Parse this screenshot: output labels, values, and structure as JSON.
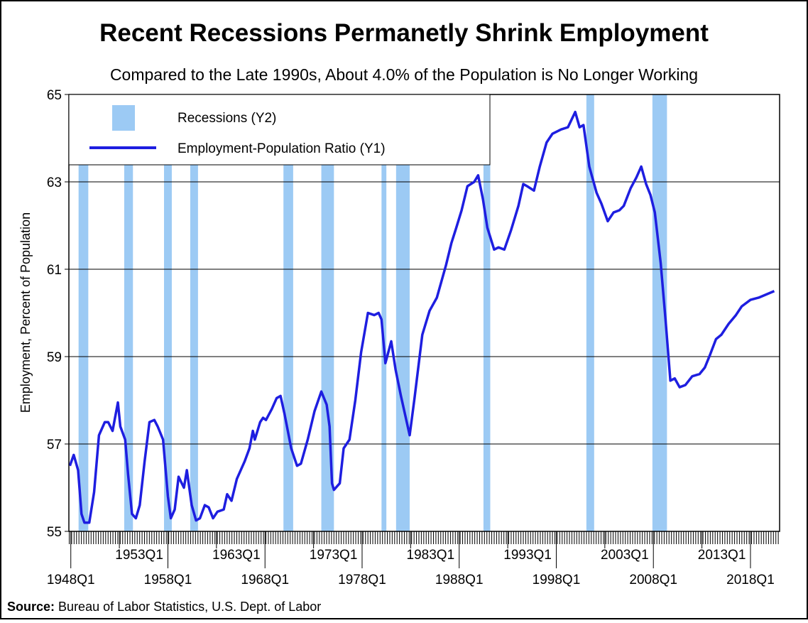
{
  "chart_data": {
    "type": "line",
    "title": "Recent Recessions Permanetly Shrink Employment",
    "subtitle": "Compared to the Late 1990s, About 4.0% of the Population is No Longer Working",
    "y_label": "Employment, Percent of Population",
    "source": {
      "label": "Source:",
      "text": "Bureau of Labor Statistics, U.S. Dept. of Labor"
    },
    "xlim": [
      1947.8,
      2021
    ],
    "ylim": [
      55,
      65
    ],
    "yticks": [
      55,
      57,
      59,
      61,
      63,
      65
    ],
    "xticks": [
      {
        "value": 1948,
        "label": "1948Q1"
      },
      {
        "value": 1953,
        "label": "1953Q1"
      },
      {
        "value": 1958,
        "label": "1958Q1"
      },
      {
        "value": 1963,
        "label": "1963Q1"
      },
      {
        "value": 1968,
        "label": "1968Q1"
      },
      {
        "value": 1973,
        "label": "1973Q1"
      },
      {
        "value": 1978,
        "label": "1978Q1"
      },
      {
        "value": 1983,
        "label": "1983Q1"
      },
      {
        "value": 1988,
        "label": "1988Q1"
      },
      {
        "value": 1993,
        "label": "1993Q1"
      },
      {
        "value": 1998,
        "label": "1998Q1"
      },
      {
        "value": 2003,
        "label": "2003Q1"
      },
      {
        "value": 2008,
        "label": "2008Q1"
      },
      {
        "value": 2013,
        "label": "2013Q1"
      },
      {
        "value": 2018,
        "label": "2018Q1"
      }
    ],
    "grid": true,
    "legend": "upper left",
    "recessions": {
      "name": "Recessions (Y2)",
      "color": "#9ccaf4",
      "start": [
        1948.8,
        1953.5,
        1957.6,
        1960.3,
        1969.9,
        1973.8,
        1980.0,
        1981.5,
        1990.5,
        2001.1,
        2007.9
      ],
      "end": [
        1949.8,
        1954.4,
        1958.4,
        1961.1,
        1970.9,
        1975.1,
        1980.5,
        1982.9,
        1991.2,
        2001.9,
        2009.4
      ]
    },
    "x": [
      1947.9,
      1948.3,
      1948.75,
      1949.1,
      1949.4,
      1949.9,
      1950.4,
      1950.9,
      1951.5,
      1951.85,
      1952.3,
      1952.85,
      1953.1,
      1953.6,
      1953.9,
      1954.3,
      1954.7,
      1955.1,
      1955.6,
      1956.1,
      1956.6,
      1956.95,
      1957.5,
      1958.0,
      1958.3,
      1958.7,
      1959.1,
      1959.65,
      1959.95,
      1960.45,
      1960.9,
      1961.3,
      1961.8,
      1962.2,
      1962.65,
      1963.1,
      1963.75,
      1964.1,
      1964.55,
      1965.1,
      1965.9,
      1966.4,
      1966.75,
      1966.95,
      1967.5,
      1967.8,
      1968.1,
      1968.7,
      1969.2,
      1969.6,
      1970.0,
      1970.7,
      1971.3,
      1971.7,
      1972.4,
      1973.1,
      1973.8,
      1974.35,
      1974.65,
      1974.9,
      1975.1,
      1975.7,
      1976.1,
      1976.7,
      1977.3,
      1977.9,
      1978.6,
      1979.25,
      1979.7,
      1980.0,
      1980.4,
      1981.0,
      1981.45,
      1982.0,
      1982.55,
      1982.9,
      1983.4,
      1984.2,
      1984.95,
      1985.7,
      1986.65,
      1987.2,
      1987.7,
      1988.25,
      1988.85,
      1989.55,
      1989.95,
      1990.45,
      1990.9,
      1991.6,
      1992.05,
      1992.65,
      1993.35,
      1994.1,
      1994.6,
      1995.0,
      1995.7,
      1996.3,
      1997.0,
      1997.6,
      1998.5,
      1999.2,
      1999.95,
      2000.4,
      2000.8,
      2001.4,
      2002.15,
      2002.65,
      2003.3,
      2003.9,
      2004.5,
      2004.95,
      2005.65,
      2006.25,
      2006.75,
      2007.25,
      2007.7,
      2008.15,
      2008.75,
      2009.25,
      2009.75,
      2010.2,
      2010.7,
      2011.3,
      2012.0,
      2012.75,
      2013.3,
      2013.85,
      2014.45,
      2015.0,
      2015.75,
      2016.5,
      2017.1,
      2018.0,
      2018.85,
      2020.45
    ],
    "series": [
      {
        "name": "Employment-Population Ratio (Y1)",
        "color": "#1e1ee0",
        "values": [
          56.5,
          56.75,
          56.4,
          55.4,
          55.2,
          55.2,
          55.9,
          57.2,
          57.5,
          57.5,
          57.3,
          57.95,
          57.4,
          57.1,
          56.3,
          55.4,
          55.3,
          55.6,
          56.6,
          57.5,
          57.55,
          57.4,
          57.1,
          55.8,
          55.3,
          55.5,
          56.25,
          56.0,
          56.4,
          55.6,
          55.25,
          55.3,
          55.6,
          55.55,
          55.3,
          55.45,
          55.5,
          55.85,
          55.7,
          56.2,
          56.6,
          56.9,
          57.3,
          57.1,
          57.5,
          57.6,
          57.55,
          57.8,
          58.05,
          58.1,
          57.7,
          56.9,
          56.5,
          56.55,
          57.1,
          57.75,
          58.2,
          57.9,
          57.4,
          56.1,
          55.95,
          56.1,
          56.9,
          57.1,
          58.0,
          59.1,
          60.0,
          59.95,
          60.0,
          59.85,
          58.85,
          59.35,
          58.7,
          58.1,
          57.55,
          57.2,
          58.05,
          59.5,
          60.05,
          60.35,
          61.1,
          61.6,
          61.95,
          62.35,
          62.9,
          63.0,
          63.15,
          62.6,
          61.95,
          61.45,
          61.5,
          61.45,
          61.9,
          62.45,
          62.95,
          62.9,
          62.8,
          63.35,
          63.9,
          64.1,
          64.2,
          64.25,
          64.6,
          64.25,
          64.3,
          63.35,
          62.75,
          62.5,
          62.1,
          62.3,
          62.35,
          62.45,
          62.85,
          63.1,
          63.35,
          62.95,
          62.7,
          62.3,
          61.15,
          59.85,
          58.45,
          58.5,
          58.3,
          58.35,
          58.55,
          58.6,
          58.75,
          59.05,
          59.4,
          59.5,
          59.75,
          59.95,
          60.15,
          60.3,
          60.35,
          60.5
        ]
      }
    ]
  }
}
